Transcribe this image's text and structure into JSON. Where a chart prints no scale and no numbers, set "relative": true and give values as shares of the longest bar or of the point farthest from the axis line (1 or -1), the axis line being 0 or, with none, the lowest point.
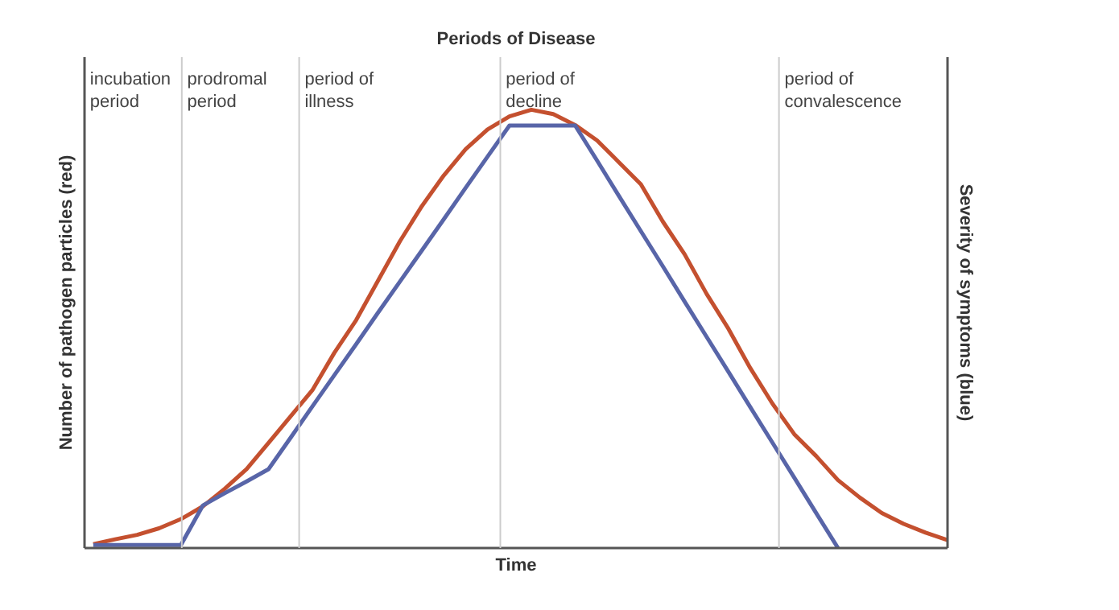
{
  "chart_data": {
    "type": "line",
    "title": "Periods of Disease",
    "xlabel": "Time",
    "ylabel": "Number of pathogen particles (red)",
    "y2label": "Severity of symptoms (blue)",
    "relative": true,
    "grid": "x",
    "line_style": "solid",
    "marker": "none",
    "categories": [
      null,
      null,
      null,
      null,
      null,
      null,
      null,
      null,
      null,
      null,
      null,
      null,
      null,
      null,
      null,
      null,
      null,
      null,
      null,
      null,
      null,
      null,
      null,
      null,
      null,
      null,
      null,
      null,
      null,
      null,
      null,
      null,
      null,
      null,
      null,
      null,
      null,
      null,
      null,
      null,
      null
    ],
    "series": [
      {
        "color": "#c4502f",
        "values": [
          null,
          0.009,
          0.02,
          0.03,
          0.045,
          0.066,
          0.095,
          0.135,
          0.18,
          0.24,
          0.3,
          0.36,
          0.445,
          0.52,
          0.61,
          0.7,
          0.78,
          0.85,
          0.91,
          0.955,
          0.985,
          1.0,
          0.99,
          0.965,
          0.93,
          0.88,
          0.83,
          0.745,
          0.67,
          0.58,
          0.5,
          0.41,
          0.33,
          0.26,
          0.21,
          0.155,
          0.115,
          0.08,
          0.055,
          0.035,
          0.018
        ]
      },
      {
        "color": "#5865a8",
        "values": [
          null,
          0.007,
          0.007,
          0.007,
          0.007,
          0.007,
          0.097,
          0.125,
          0.152,
          0.18,
          0.251,
          0.323,
          0.394,
          0.465,
          0.537,
          0.608,
          0.679,
          0.75,
          0.822,
          0.893,
          0.964,
          0.964,
          0.964,
          0.964,
          0.884,
          0.803,
          0.723,
          0.643,
          0.562,
          0.482,
          0.402,
          0.321,
          0.241,
          0.161,
          0.08,
          0,
          null,
          null,
          null,
          null,
          null
        ]
      }
    ],
    "annotations": [
      "incubation\nperiod",
      "prodromal\nperiod",
      "period of\nillness",
      "period of\ndecline",
      "period of\nconvalescence"
    ]
  }
}
